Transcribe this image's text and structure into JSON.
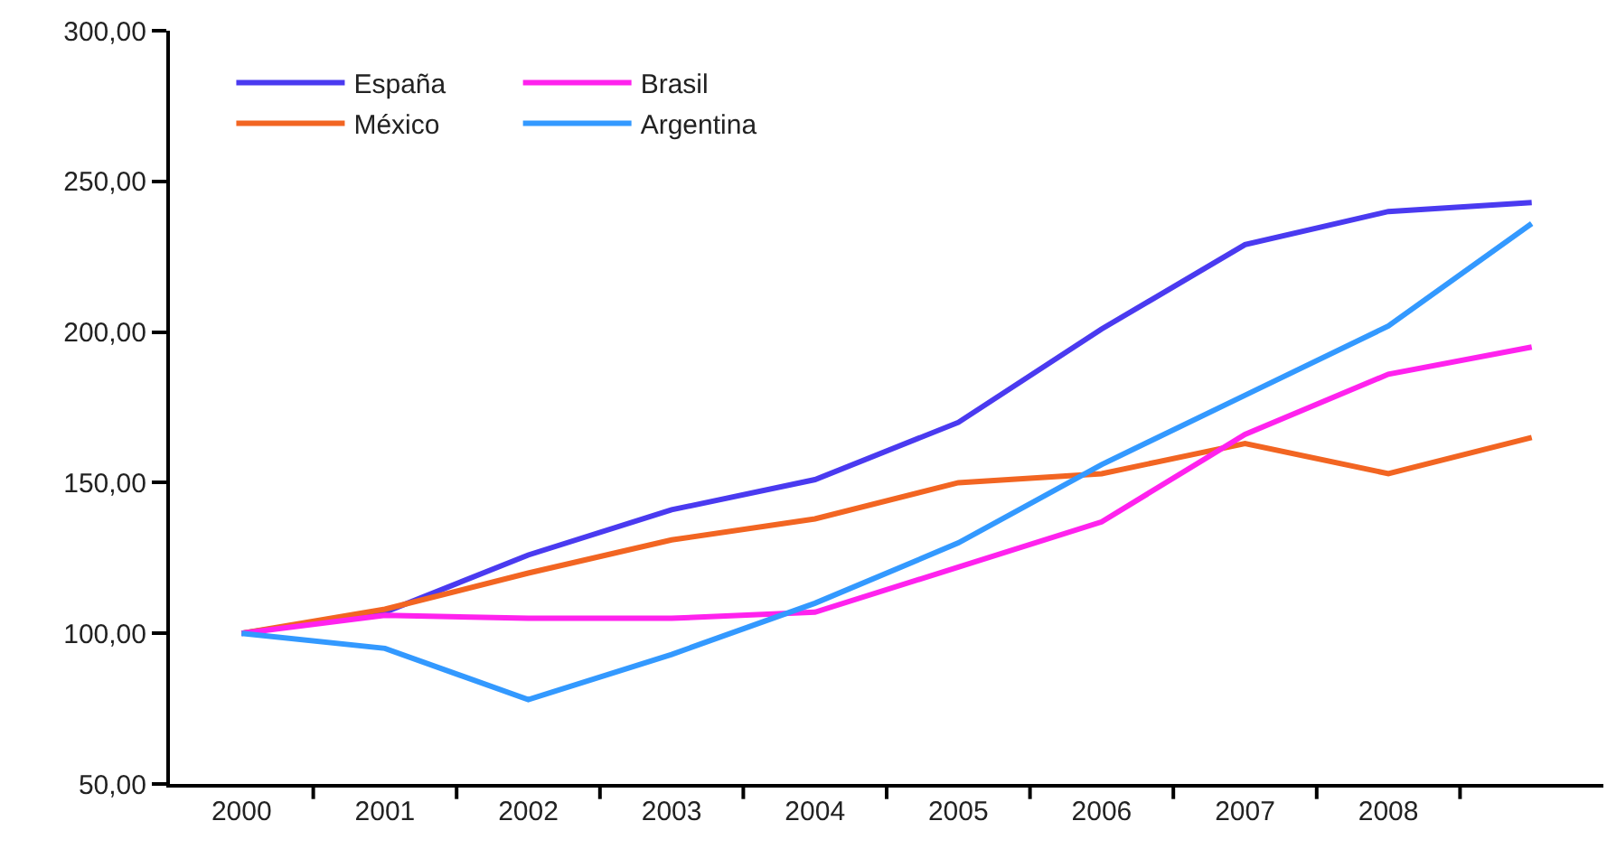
{
  "chart_data": {
    "type": "line",
    "categories": [
      "2000",
      "2001",
      "2002",
      "2003",
      "2004",
      "2005",
      "2006",
      "2007",
      "2008",
      null
    ],
    "ylim": [
      50,
      300
    ],
    "yticks": [
      {
        "value": 50,
        "label": "50,00"
      },
      {
        "value": 100,
        "label": "100,00"
      },
      {
        "value": 150,
        "label": "150,00"
      },
      {
        "value": 200,
        "label": "200,00"
      },
      {
        "value": 250,
        "label": "250,00"
      },
      {
        "value": 300,
        "label": "300,00"
      }
    ],
    "grid": false,
    "legend": "top left",
    "marker": "none",
    "line_style": "solid",
    "series": [
      {
        "name": "España",
        "color": "#4a3af0",
        "values": [
          100,
          107,
          126,
          141,
          151,
          170,
          201,
          229,
          240,
          243
        ]
      },
      {
        "name": "México",
        "color": "#f26522",
        "values": [
          100,
          108,
          120,
          131,
          138,
          150,
          153,
          163,
          153,
          165
        ]
      },
      {
        "name": "Brasil",
        "color": "#ff22ee",
        "values": [
          100,
          106,
          105,
          105,
          107,
          122,
          137,
          166,
          186,
          195
        ]
      },
      {
        "name": "Argentina",
        "color": "#3399ff",
        "values": [
          100,
          95,
          78,
          93,
          110,
          130,
          156,
          179,
          202,
          236
        ]
      }
    ]
  }
}
